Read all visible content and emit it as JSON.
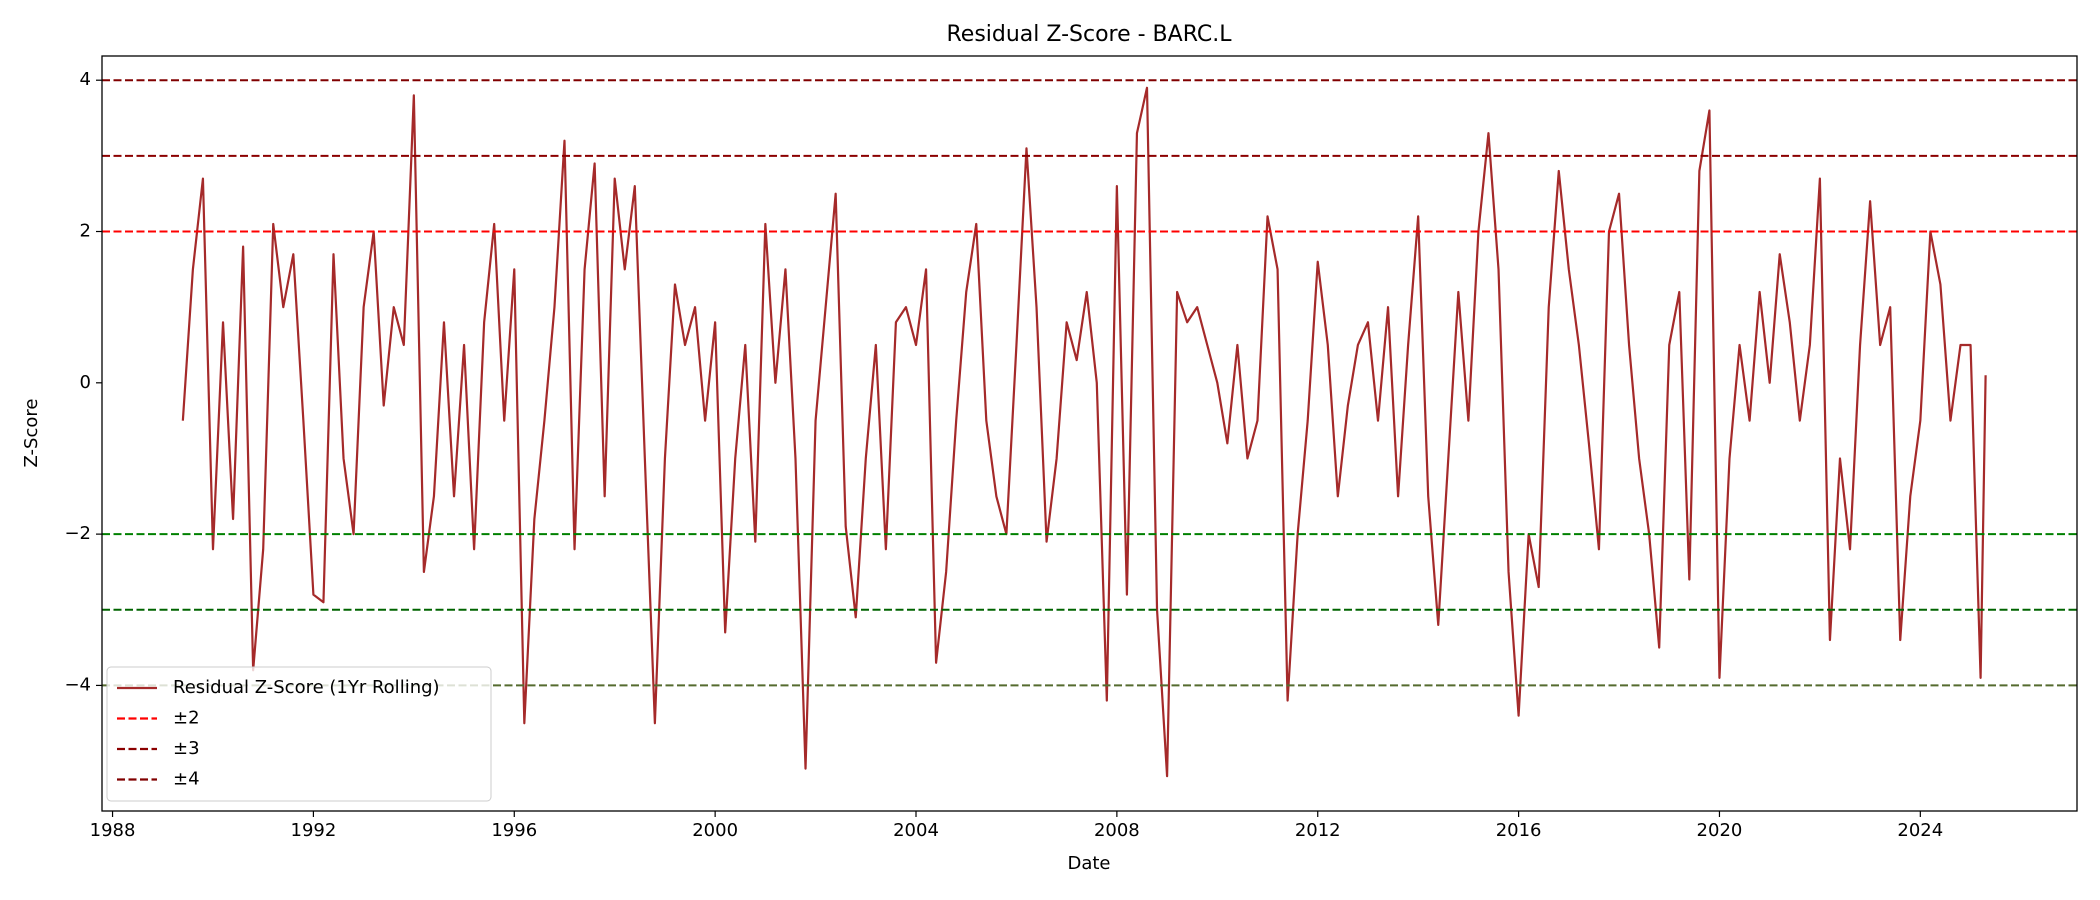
{
  "chart_data": {
    "type": "line",
    "title": "Residual Z-Score - BARC.L",
    "x_label": "Date",
    "y_label": "Z-Score",
    "xlim": [
      1987.79,
      2027.12
    ],
    "xticks": [
      1988,
      1992,
      1996,
      2000,
      2004,
      2008,
      2012,
      2016,
      2020,
      2024
    ],
    "ylim": [
      -5.66,
      4.32
    ],
    "yticks": [
      {
        "value": -4,
        "label": "−4"
      },
      {
        "value": -2,
        "label": "−2"
      },
      0,
      2,
      4
    ],
    "grid": false,
    "legend": "lower left",
    "series": [
      {
        "name": "Residual Z-Score (1Yr Rolling)",
        "color": "#a52a2a",
        "x": [
          1989.4,
          1989.6,
          1989.8,
          1990.0,
          1990.2,
          1990.4,
          1990.6,
          1990.8,
          1991.0,
          1991.2,
          1991.4,
          1991.6,
          1991.8,
          1992.0,
          1992.2,
          1992.4,
          1992.6,
          1992.8,
          1993.0,
          1993.2,
          1993.4,
          1993.6,
          1993.8,
          1994.0,
          1994.2,
          1994.4,
          1994.6,
          1994.8,
          1995.0,
          1995.2,
          1995.4,
          1995.6,
          1995.8,
          1996.0,
          1996.2,
          1996.4,
          1996.6,
          1996.8,
          1997.0,
          1997.2,
          1997.4,
          1997.6,
          1997.8,
          1998.0,
          1998.2,
          1998.4,
          1998.6,
          1998.8,
          1999.0,
          1999.2,
          1999.4,
          1999.6,
          1999.8,
          2000.0,
          2000.2,
          2000.4,
          2000.6,
          2000.8,
          2001.0,
          2001.2,
          2001.4,
          2001.6,
          2001.8,
          2002.0,
          2002.2,
          2002.4,
          2002.6,
          2002.8,
          2003.0,
          2003.2,
          2003.4,
          2003.6,
          2003.8,
          2004.0,
          2004.2,
          2004.4,
          2004.6,
          2004.8,
          2005.0,
          2005.2,
          2005.4,
          2005.6,
          2005.8,
          2006.0,
          2006.2,
          2006.4,
          2006.6,
          2006.8,
          2007.0,
          2007.2,
          2007.4,
          2007.6,
          2007.8,
          2008.0,
          2008.2,
          2008.4,
          2008.6,
          2008.8,
          2009.0,
          2009.2,
          2009.4,
          2009.6,
          2009.8,
          2010.0,
          2010.2,
          2010.4,
          2010.6,
          2010.8,
          2011.0,
          2011.2,
          2011.4,
          2011.6,
          2011.8,
          2012.0,
          2012.2,
          2012.4,
          2012.6,
          2012.8,
          2013.0,
          2013.2,
          2013.4,
          2013.6,
          2013.8,
          2014.0,
          2014.2,
          2014.4,
          2014.6,
          2014.8,
          2015.0,
          2015.2,
          2015.4,
          2015.6,
          2015.8,
          2016.0,
          2016.2,
          2016.4,
          2016.6,
          2016.8,
          2017.0,
          2017.2,
          2017.4,
          2017.6,
          2017.8,
          2018.0,
          2018.2,
          2018.4,
          2018.6,
          2018.8,
          2019.0,
          2019.2,
          2019.4,
          2019.6,
          2019.8,
          2020.0,
          2020.2,
          2020.4,
          2020.6,
          2020.8,
          2021.0,
          2021.2,
          2021.4,
          2021.6,
          2021.8,
          2022.0,
          2022.2,
          2022.4,
          2022.6,
          2022.8,
          2023.0,
          2023.2,
          2023.4,
          2023.6,
          2023.8,
          2024.0,
          2024.2,
          2024.4,
          2024.6,
          2024.8,
          2025.0,
          2025.2,
          2025.3
        ],
        "values": [
          -0.5,
          1.5,
          2.7,
          -2.2,
          0.8,
          -1.8,
          1.8,
          -3.8,
          -2.2,
          2.1,
          1.0,
          1.7,
          -0.5,
          -2.8,
          -2.9,
          1.7,
          -1.0,
          -2.0,
          1.0,
          2.0,
          -0.3,
          1.0,
          0.5,
          3.8,
          -2.5,
          -1.5,
          0.8,
          -1.5,
          0.5,
          -2.2,
          0.8,
          2.1,
          -0.5,
          1.5,
          -4.5,
          -1.8,
          -0.5,
          1.0,
          3.2,
          -2.2,
          1.5,
          2.9,
          -1.5,
          2.7,
          1.5,
          2.6,
          -1.0,
          -4.5,
          -1.0,
          1.3,
          0.5,
          1.0,
          -0.5,
          0.8,
          -3.3,
          -1.0,
          0.5,
          -2.1,
          2.1,
          0.0,
          1.5,
          -1.0,
          -5.1,
          -0.5,
          1.0,
          2.5,
          -1.9,
          -3.1,
          -1.0,
          0.5,
          -2.2,
          0.8,
          1.0,
          0.5,
          1.5,
          -3.7,
          -2.5,
          -0.5,
          1.2,
          2.1,
          -0.5,
          -1.5,
          -2.0,
          0.5,
          3.1,
          1.0,
          -2.1,
          -1.0,
          0.8,
          0.3,
          1.2,
          0.0,
          -4.2,
          2.6,
          -2.8,
          3.3,
          3.9,
          -3.0,
          -5.2,
          1.2,
          0.8,
          1.0,
          0.5,
          0.0,
          -0.8,
          0.5,
          -1.0,
          -0.5,
          2.2,
          1.5,
          -4.2,
          -2.0,
          -0.5,
          1.6,
          0.5,
          -1.5,
          -0.3,
          0.5,
          0.8,
          -0.5,
          1.0,
          -1.5,
          0.5,
          2.2,
          -1.5,
          -3.2,
          -1.0,
          1.2,
          -0.5,
          2.0,
          3.3,
          1.5,
          -2.5,
          -4.4,
          -2.0,
          -2.7,
          1.0,
          2.8,
          1.5,
          0.5,
          -0.8,
          -2.2,
          2.0,
          2.5,
          0.5,
          -1.0,
          -2.0,
          -3.5,
          0.5,
          1.2,
          -2.6,
          2.8,
          3.6,
          -3.9,
          -1.0,
          0.5,
          -0.5,
          1.2,
          0.0,
          1.7,
          0.8,
          -0.5,
          0.5,
          2.7,
          -3.4,
          -1.0,
          -2.2,
          0.5,
          2.4,
          0.5,
          1.0,
          -3.4,
          -1.5,
          -0.5,
          2.0,
          1.3,
          -0.5,
          0.5,
          0.5,
          -3.9,
          0.1
        ]
      }
    ],
    "thresholds": [
      {
        "name": "±2",
        "levels": [
          2,
          -2
        ],
        "colors": [
          "#ff0000",
          "#008000"
        ]
      },
      {
        "name": "±3",
        "levels": [
          3,
          -3
        ],
        "colors": [
          "#8b0000",
          "#006400"
        ]
      },
      {
        "name": "±4",
        "levels": [
          4,
          -4
        ],
        "colors": [
          "#800000",
          "#556b2f"
        ]
      }
    ]
  }
}
